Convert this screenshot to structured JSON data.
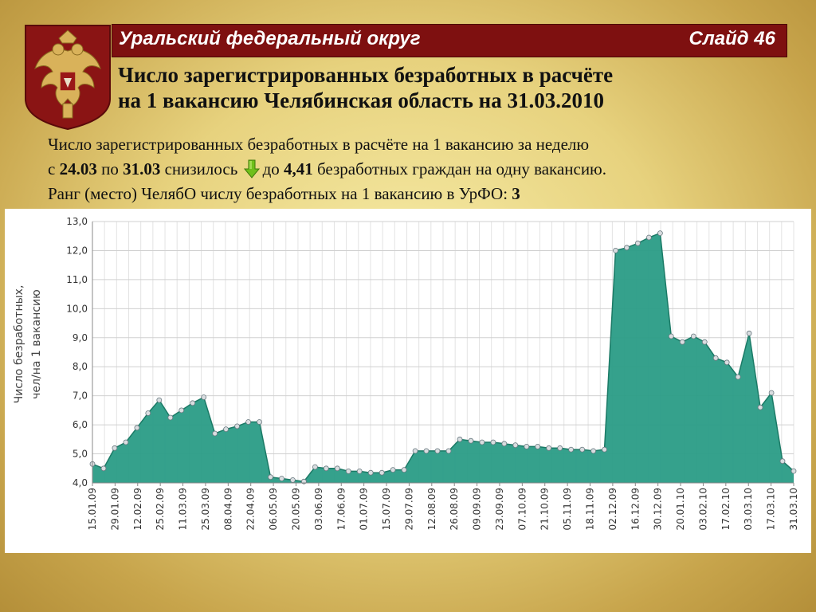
{
  "header": {
    "region": "Уральский федеральный округ",
    "slide": "Слайд 46"
  },
  "title": {
    "line1": "Число зарегистрированных безработных в расчёте",
    "line2": "на 1 вакансию Челябинская область на 31.03.2010"
  },
  "summary": {
    "line1": "Число зарегистрированных безработных в расчёте на 1 вакансию за неделю",
    "l2_a": "с ",
    "l2_b": "24.03",
    "l2_c": " по ",
    "l2_d": "31.03",
    "l2_e": " снизилось ",
    "l2_f": "до ",
    "l2_g": "4,41",
    "l2_h": " безработных граждан на одну вакансию.",
    "l3_a": "Ранг (место) ЧелябО числу безработных на 1 вакансию в УрФО: ",
    "l3_b": "3"
  },
  "icons": {
    "arrow": "down-arrow-icon",
    "emblem": "coat-of-arms-emblem"
  },
  "colors": {
    "header": "#7e1010",
    "area": "#2a9c86",
    "line": "#1b7a66",
    "arrow": "#6fbf1a"
  },
  "chart_data": {
    "type": "area",
    "title": "",
    "ylabel_lines": [
      "Число безработных,",
      "чел/на 1 вакансию"
    ],
    "xlabel": "",
    "ylim": [
      4.0,
      13.0
    ],
    "yticks": [
      "4,0",
      "5,0",
      "6,0",
      "7,0",
      "8,0",
      "9,0",
      "10,0",
      "11,0",
      "12,0",
      "13,0"
    ],
    "xtick_labels": [
      "15.01.09",
      "29.01.09",
      "12.02.09",
      "25.02.09",
      "11.03.09",
      "25.03.09",
      "08.04.09",
      "22.04.09",
      "06.05.09",
      "20.05.09",
      "03.06.09",
      "17.06.09",
      "01.07.09",
      "15.07.09",
      "29.07.09",
      "12.08.09",
      "26.08.09",
      "09.09.09",
      "23.09.09",
      "07.10.09",
      "21.10.09",
      "05.11.09",
      "18.11.09",
      "02.12.09",
      "16.12.09",
      "30.12.09",
      "20.01.10",
      "03.02.10",
      "17.02.10",
      "03.03.10",
      "17.03.10",
      "31.03.10"
    ],
    "values": [
      4.65,
      4.5,
      5.2,
      5.4,
      5.9,
      6.4,
      6.85,
      6.25,
      6.5,
      6.75,
      6.95,
      5.7,
      5.85,
      5.95,
      6.1,
      6.1,
      4.2,
      4.15,
      4.1,
      4.05,
      4.55,
      4.5,
      4.5,
      4.4,
      4.4,
      4.35,
      4.35,
      4.45,
      4.45,
      5.1,
      5.1,
      5.1,
      5.1,
      5.5,
      5.45,
      5.4,
      5.4,
      5.35,
      5.3,
      5.25,
      5.25,
      5.2,
      5.2,
      5.15,
      5.15,
      5.1,
      5.15,
      12.0,
      12.1,
      12.25,
      12.45,
      12.6,
      9.05,
      8.85,
      9.05,
      8.85,
      8.3,
      8.15,
      7.65,
      9.15,
      6.6,
      7.1,
      4.75,
      4.41
    ],
    "grid": true,
    "legend": "none"
  }
}
